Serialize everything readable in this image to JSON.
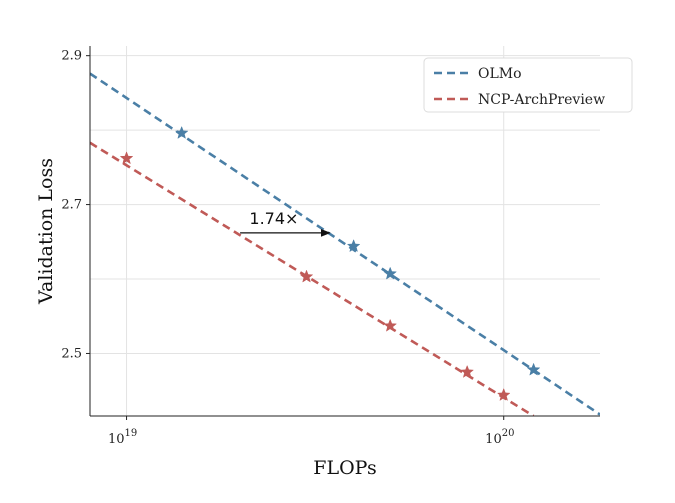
{
  "chart_data": {
    "type": "line",
    "title": "",
    "xlabel": "FLOPs",
    "ylabel": "Validation Loss",
    "x_scale": "log",
    "xlim": [
      8e+18,
      1.8e+20
    ],
    "ylim": [
      2.416,
      2.913
    ],
    "x_ticks": [
      {
        "value": 1e+19,
        "base": "10",
        "exp": "19"
      },
      {
        "value": 1e+20,
        "base": "10",
        "exp": "20"
      }
    ],
    "y_ticks": [
      {
        "value": 2.5,
        "label": "2.5"
      },
      {
        "value": 2.7,
        "label": "2.7"
      },
      {
        "value": 2.9,
        "label": "2.9"
      }
    ],
    "y_minor_grid": [
      2.6,
      2.8
    ],
    "grid": true,
    "legend_position": "top-right",
    "series": [
      {
        "name": "OLMo",
        "color": "#4a7fa6",
        "fit": [
          [
            8e+18,
            2.876
          ],
          [
            1.8e+20,
            2.418
          ]
        ],
        "points": [
          [
            1.4e+19,
            2.796
          ],
          [
            4e+19,
            2.644
          ],
          [
            5e+19,
            2.607
          ],
          [
            1.2e+20,
            2.478
          ]
        ]
      },
      {
        "name": "NCP-ArchPreview",
        "color": "#c05a57",
        "fit": [
          [
            8e+18,
            2.783
          ],
          [
            1.2e+20,
            2.416
          ]
        ],
        "points": [
          [
            1e+19,
            2.762
          ],
          [
            3e+19,
            2.603
          ],
          [
            5e+19,
            2.537
          ],
          [
            8e+19,
            2.475
          ],
          [
            1e+20,
            2.444
          ]
        ]
      }
    ],
    "annotations": [
      {
        "text": "1.74×",
        "from": [
          2e+19,
          2.662
        ],
        "to": [
          3.5e+19,
          2.662
        ]
      }
    ]
  }
}
